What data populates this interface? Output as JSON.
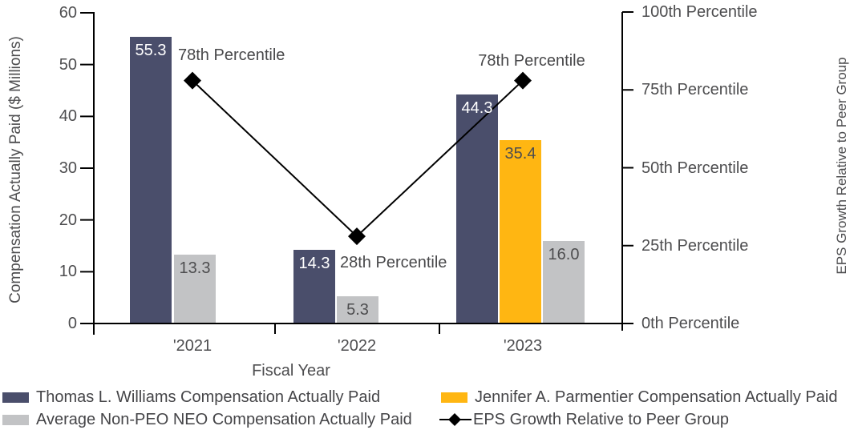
{
  "chart_data": {
    "type": "bar",
    "categories": [
      "'2021",
      "'2022",
      "'2023"
    ],
    "xlabel": "Fiscal Year",
    "left_axis": {
      "label": "Compensation Actually Paid ($ Millions)",
      "ticks": [
        "0",
        "10",
        "20",
        "30",
        "40",
        "50",
        "60"
      ],
      "tick_values": [
        0,
        10,
        20,
        30,
        40,
        50,
        60
      ],
      "range": [
        0,
        60
      ]
    },
    "right_axis": {
      "label": "EPS Growth Relative to Peer Group",
      "ticks": [
        "0th Percentile",
        "25th Percentile",
        "50th Percentile",
        "75th Percentile",
        "100th Percentile"
      ],
      "tick_values": [
        0,
        25,
        50,
        75,
        100
      ],
      "range": [
        0,
        100
      ]
    },
    "bar_series": [
      {
        "name": "Thomas L. Williams Compensation Actually Paid",
        "color": "#4a4e6b",
        "label_color": "#ffffff",
        "values": [
          55.3,
          14.3,
          44.3
        ],
        "labels": [
          "55.3",
          "14.3",
          "44.3"
        ]
      },
      {
        "name": "Jennifer A. Parmentier Compensation Actually Paid",
        "color": "#ffb612",
        "label_color": "#4d4d4f",
        "values": [
          null,
          null,
          35.4
        ],
        "labels": [
          null,
          null,
          "35.4"
        ]
      },
      {
        "name": "Average Non-PEO NEO Compensation Actually Paid",
        "color": "#c2c3c5",
        "label_color": "#4d4d4f",
        "values": [
          13.3,
          5.3,
          16.0
        ],
        "labels": [
          "13.3",
          "5.3",
          "16.0"
        ]
      }
    ],
    "line_series": {
      "name": "EPS Growth Relative to Peer Group",
      "color": "#000000",
      "values": [
        78,
        28,
        78
      ],
      "annotations": [
        "78th Percentile",
        "28th Percentile",
        "78th Percentile"
      ]
    },
    "legend_position": "bottom"
  },
  "legend": {
    "items": [
      {
        "label": "Thomas L. Williams Compensation Actually Paid",
        "swatch": "#4a4e6b",
        "type": "box"
      },
      {
        "label": "Average Non-PEO NEO Compensation Actually Paid",
        "swatch": "#c2c3c5",
        "type": "box"
      },
      {
        "label": "Jennifer A. Parmentier Compensation Actually Paid",
        "swatch": "#ffb612",
        "type": "box"
      },
      {
        "label": "EPS Growth Relative to Peer Group",
        "swatch": "#000000",
        "type": "diamond-line"
      }
    ]
  }
}
